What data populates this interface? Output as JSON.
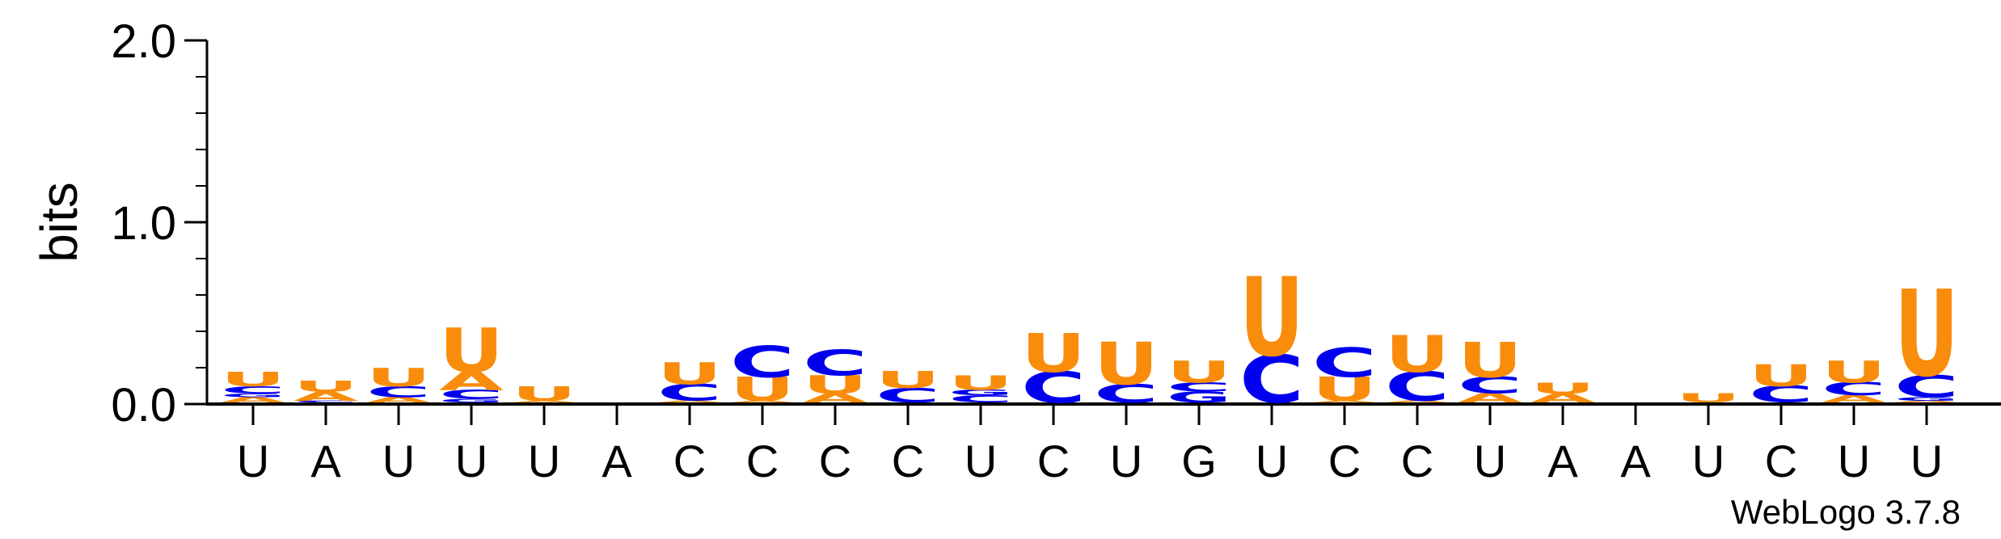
{
  "chart_data": {
    "type": "sequence-logo",
    "ylabel": "bits",
    "ylim": [
      0,
      2.0
    ],
    "yticks": [
      "0.0",
      "1.0",
      "2.0"
    ],
    "xlabels": [
      "U",
      "A",
      "U",
      "U",
      "U",
      "A",
      "C",
      "C",
      "C",
      "C",
      "U",
      "C",
      "U",
      "G",
      "U",
      "C",
      "C",
      "U",
      "A",
      "A",
      "U",
      "C",
      "U",
      "U"
    ],
    "colors": {
      "A": "#f98c0a",
      "U": "#f98c0a",
      "C": "#0000ee",
      "G": "#0000ee"
    },
    "positions": [
      {
        "stack": [
          [
            "A",
            0.03
          ],
          [
            "G",
            0.02
          ],
          [
            "C",
            0.04
          ],
          [
            "U",
            0.08
          ]
        ]
      },
      {
        "stack": [
          [
            "C",
            0.01
          ],
          [
            "A",
            0.05
          ],
          [
            "U",
            0.06
          ]
        ]
      },
      {
        "stack": [
          [
            "A",
            0.03
          ],
          [
            "C",
            0.06
          ],
          [
            "U",
            0.1
          ]
        ]
      },
      {
        "stack": [
          [
            "G",
            0.02
          ],
          [
            "C",
            0.05
          ],
          [
            "A",
            0.1
          ],
          [
            "U",
            0.24
          ]
        ]
      },
      {
        "stack": [
          [
            "A",
            0.01
          ],
          [
            "U",
            0.08
          ]
        ]
      },
      {
        "stack": []
      },
      {
        "stack": [
          [
            "A",
            0.01
          ],
          [
            "C",
            0.09
          ],
          [
            "U",
            0.12
          ]
        ]
      },
      {
        "stack": [
          [
            "A",
            0.01
          ],
          [
            "U",
            0.13
          ],
          [
            "C",
            0.17
          ]
        ]
      },
      {
        "stack": [
          [
            "A",
            0.05
          ],
          [
            "U",
            0.1
          ],
          [
            "C",
            0.14
          ]
        ]
      },
      {
        "stack": [
          [
            "C",
            0.08
          ],
          [
            "U",
            0.09
          ]
        ]
      },
      {
        "stack": [
          [
            "C",
            0.04
          ],
          [
            "G",
            0.03
          ],
          [
            "U",
            0.08
          ]
        ]
      },
      {
        "stack": [
          [
            "C",
            0.17
          ],
          [
            "U",
            0.21
          ]
        ]
      },
      {
        "stack": [
          [
            "C",
            0.1
          ],
          [
            "U",
            0.23
          ]
        ]
      },
      {
        "stack": [
          [
            "G",
            0.06
          ],
          [
            "C",
            0.05
          ],
          [
            "U",
            0.12
          ]
        ]
      },
      {
        "stack": [
          [
            "C",
            0.26
          ],
          [
            "U",
            0.43
          ]
        ]
      },
      {
        "stack": [
          [
            "A",
            0.01
          ],
          [
            "U",
            0.13
          ],
          [
            "C",
            0.16
          ]
        ]
      },
      {
        "stack": [
          [
            "A",
            0.01
          ],
          [
            "C",
            0.16
          ],
          [
            "U",
            0.2
          ]
        ]
      },
      {
        "stack": [
          [
            "A",
            0.05
          ],
          [
            "C",
            0.09
          ],
          [
            "U",
            0.19
          ]
        ]
      },
      {
        "stack": [
          [
            "A",
            0.05
          ],
          [
            "U",
            0.06
          ]
        ]
      },
      {
        "stack": []
      },
      {
        "stack": [
          [
            "U",
            0.05
          ]
        ]
      },
      {
        "stack": [
          [
            "C",
            0.09
          ],
          [
            "U",
            0.12
          ]
        ]
      },
      {
        "stack": [
          [
            "A",
            0.04
          ],
          [
            "C",
            0.07
          ],
          [
            "U",
            0.12
          ]
        ]
      },
      {
        "stack": [
          [
            "A",
            0.01
          ],
          [
            "G",
            0.02
          ],
          [
            "C",
            0.12
          ],
          [
            "U",
            0.47
          ]
        ]
      }
    ]
  },
  "credit": "WebLogo 3.7.8"
}
